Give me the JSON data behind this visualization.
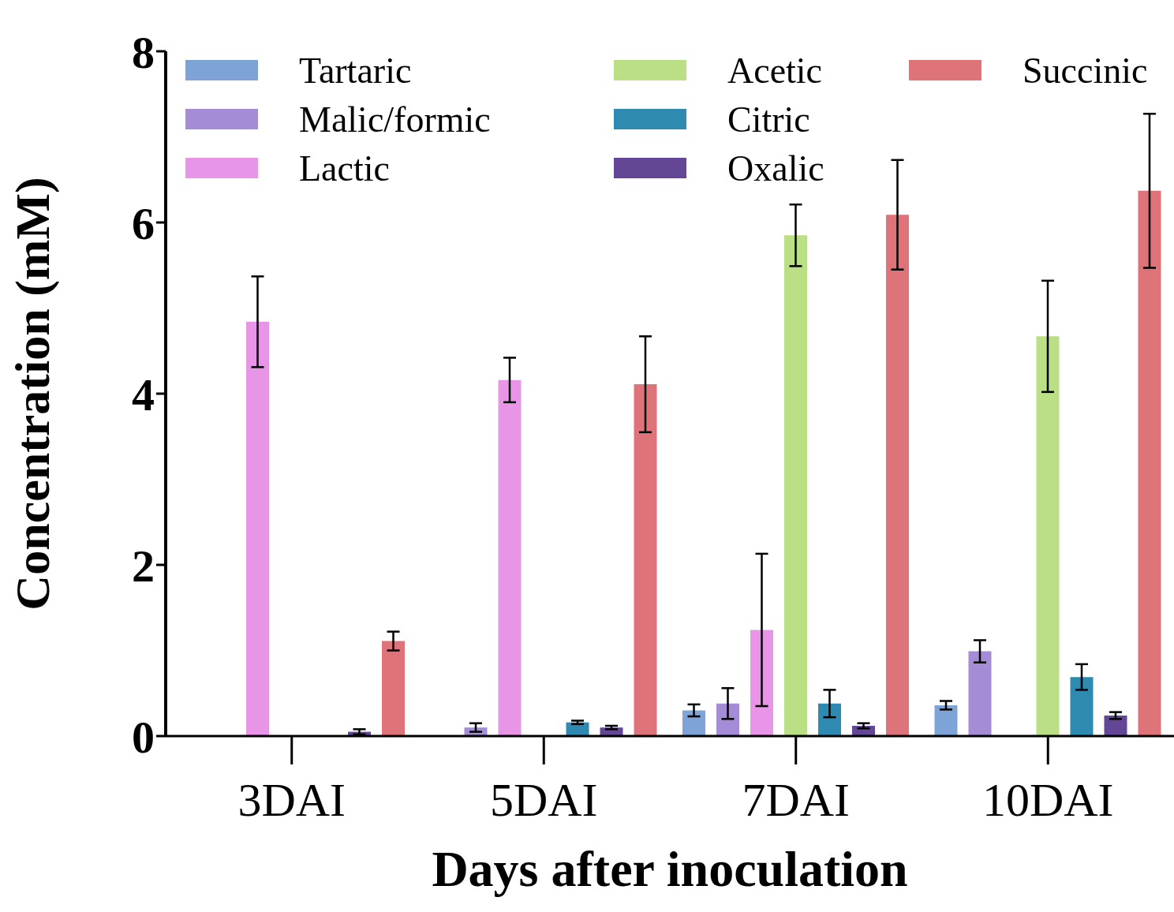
{
  "chart_data": {
    "type": "bar",
    "xlabel": "Days after inoculation",
    "ylabel": "Concentration (mM)",
    "categories": [
      "3DAI",
      "5DAI",
      "7DAI",
      "10DAI"
    ],
    "ylim": [
      0,
      8
    ],
    "yticks": [
      0,
      2,
      4,
      6,
      8
    ],
    "grid": false,
    "legend": "top",
    "series": [
      {
        "name": "Tartaric",
        "color": "#7ea3d6",
        "values": [
          null,
          null,
          0.3,
          0.36
        ],
        "errors": [
          null,
          null,
          0.07,
          0.05
        ]
      },
      {
        "name": "Malic/formic",
        "color": "#a48cd6",
        "values": [
          null,
          0.1,
          0.38,
          0.99
        ],
        "errors": [
          null,
          0.05,
          0.18,
          0.13
        ]
      },
      {
        "name": "Lactic",
        "color": "#e895e8",
        "values": [
          4.84,
          4.16,
          1.24,
          null
        ],
        "errors": [
          0.53,
          0.26,
          0.89,
          null
        ]
      },
      {
        "name": "Acetic",
        "color": "#bbdf85",
        "values": [
          null,
          null,
          5.85,
          4.67
        ],
        "errors": [
          null,
          null,
          0.36,
          0.65
        ]
      },
      {
        "name": "Citric",
        "color": "#2e8ab0",
        "values": [
          null,
          0.16,
          0.38,
          0.69
        ],
        "errors": [
          null,
          0.02,
          0.16,
          0.15
        ]
      },
      {
        "name": "Oxalic",
        "color": "#634796",
        "values": [
          0.05,
          0.1,
          0.12,
          0.24
        ],
        "errors": [
          0.03,
          0.02,
          0.03,
          0.04
        ]
      },
      {
        "name": "Succinic",
        "color": "#df737a",
        "values": [
          1.11,
          4.11,
          6.09,
          6.37
        ],
        "errors": [
          0.11,
          0.56,
          0.64,
          0.9
        ]
      }
    ]
  }
}
